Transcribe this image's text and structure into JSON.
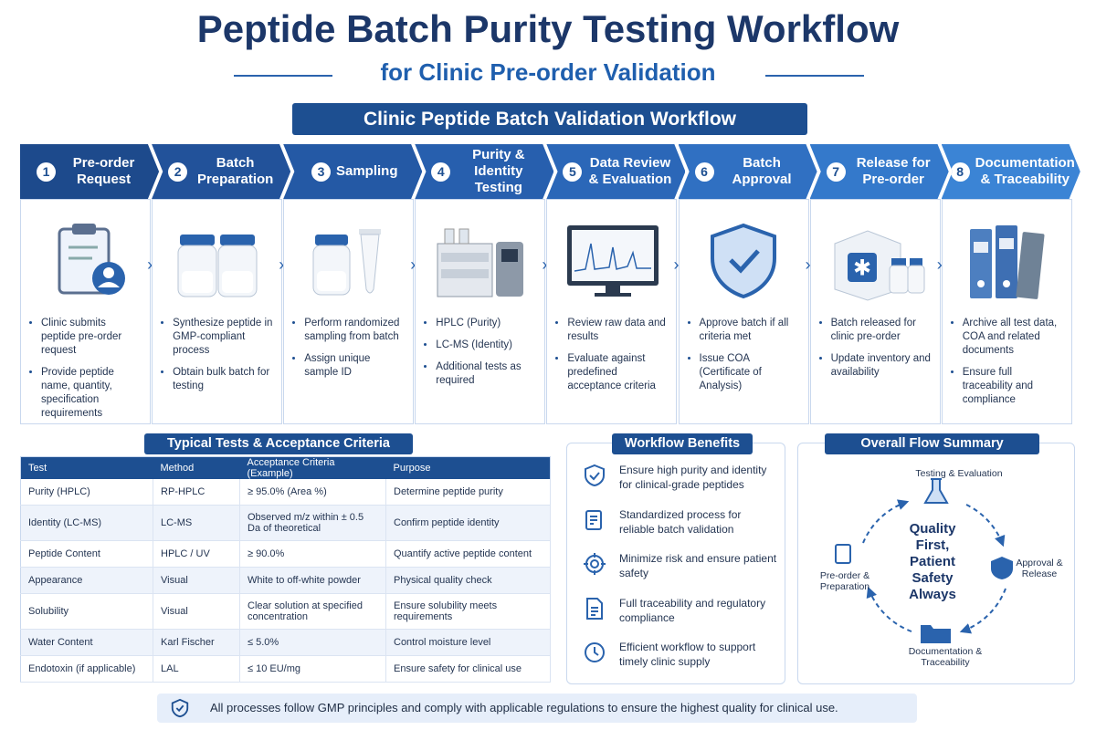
{
  "header": {
    "title": "Peptide Batch Purity Testing Workflow",
    "subtitle": "for Clinic Pre-order Validation"
  },
  "workflow": {
    "title": "Clinic Peptide Batch Validation Workflow",
    "steps": [
      {
        "number": "1",
        "label": "Pre-order Request",
        "bullets": [
          "Clinic submits peptide pre-order request",
          "Provide peptide name, quantity, specification requirements"
        ]
      },
      {
        "number": "2",
        "label": "Batch Preparation",
        "bullets": [
          "Synthesize peptide in GMP-compliant process",
          "Obtain bulk batch for testing"
        ]
      },
      {
        "number": "3",
        "label": "Sampling",
        "bullets": [
          "Perform randomized sampling from batch",
          "Assign unique sample ID"
        ]
      },
      {
        "number": "4",
        "label": "Purity & Identity Testing",
        "bullets": [
          "HPLC (Purity)",
          "LC-MS (Identity)",
          "Additional tests as required"
        ]
      },
      {
        "number": "5",
        "label": "Data Review & Evaluation",
        "bullets": [
          "Review raw data and results",
          "Evaluate against predefined acceptance criteria"
        ]
      },
      {
        "number": "6",
        "label": "Batch Approval",
        "bullets": [
          "Approve batch if all criteria met",
          "Issue COA (Certificate of Analysis)"
        ]
      },
      {
        "number": "7",
        "label": "Release for Pre-order",
        "bullets": [
          "Batch released for clinic pre-order",
          "Update inventory and availability"
        ]
      },
      {
        "number": "8",
        "label": "Documentation & Traceability",
        "bullets": [
          "Archive all test data, COA and related documents",
          "Ensure full traceability and compliance"
        ]
      }
    ]
  },
  "table": {
    "title": "Typical Tests & Acceptance Criteria",
    "headers": [
      "Test",
      "Method",
      "Acceptance Criteria (Example)",
      "Purpose"
    ],
    "rows": [
      [
        "Purity (HPLC)",
        "RP-HPLC",
        "≥ 95.0% (Area %)",
        "Determine peptide purity"
      ],
      [
        "Identity (LC-MS)",
        "LC-MS",
        "Observed m/z within ± 0.5 Da of theoretical",
        "Confirm peptide identity"
      ],
      [
        "Peptide Content",
        "HPLC / UV",
        "≥ 90.0%",
        "Quantify active peptide content"
      ],
      [
        "Appearance",
        "Visual",
        "White to off-white powder",
        "Physical quality check"
      ],
      [
        "Solubility",
        "Visual",
        "Clear solution at specified concentration",
        "Ensure solubility meets requirements"
      ],
      [
        "Water Content",
        "Karl Fischer",
        "≤ 5.0%",
        "Control moisture level"
      ],
      [
        "Endotoxin (if applicable)",
        "LAL",
        "≤ 10 EU/mg",
        "Ensure safety for clinical use"
      ]
    ]
  },
  "benefits": {
    "title": "Workflow Benefits",
    "items": [
      "Ensure high purity and identity for clinical-grade peptides",
      "Standardized process for reliable batch validation",
      "Minimize risk and ensure patient safety",
      "Full traceability and regulatory compliance",
      "Efficient workflow to support timely clinic supply"
    ]
  },
  "summary": {
    "title": "Overall Flow Summary",
    "center": "Quality First, Patient Safety Always",
    "nodes": [
      "Testing & Evaluation",
      "Approval & Release",
      "Documentation & Traceability",
      "Pre-order & Preparation"
    ]
  },
  "footer": {
    "text": "All processes follow GMP principles and comply with applicable regulations to ensure the highest quality for clinical use."
  }
}
